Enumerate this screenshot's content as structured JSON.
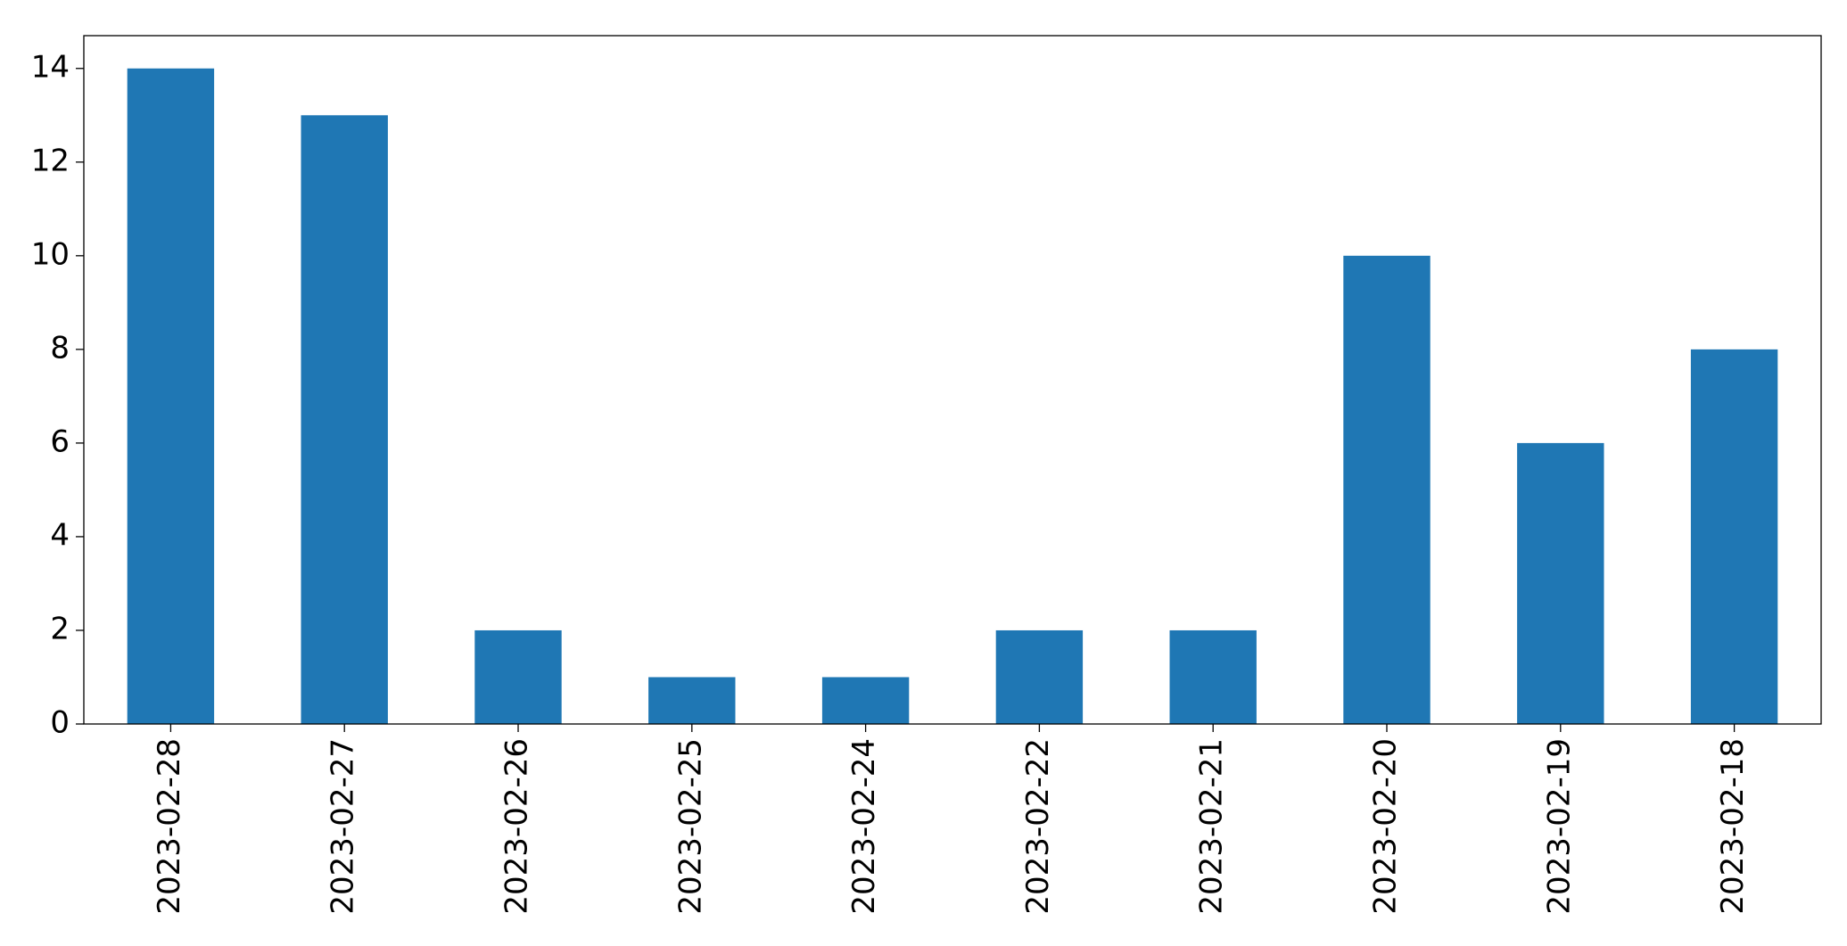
{
  "chart_data": {
    "type": "bar",
    "categories": [
      "2023-02-28",
      "2023-02-27",
      "2023-02-26",
      "2023-02-25",
      "2023-02-24",
      "2023-02-22",
      "2023-02-21",
      "2023-02-20",
      "2023-02-19",
      "2023-02-18"
    ],
    "values": [
      14,
      13,
      2,
      1,
      1,
      2,
      2,
      10,
      6,
      8
    ],
    "color": "#1f77b4",
    "ylim": [
      0,
      14.7
    ],
    "yticks": [
      0,
      2,
      4,
      6,
      8,
      10,
      12,
      14
    ],
    "grid": false
  }
}
